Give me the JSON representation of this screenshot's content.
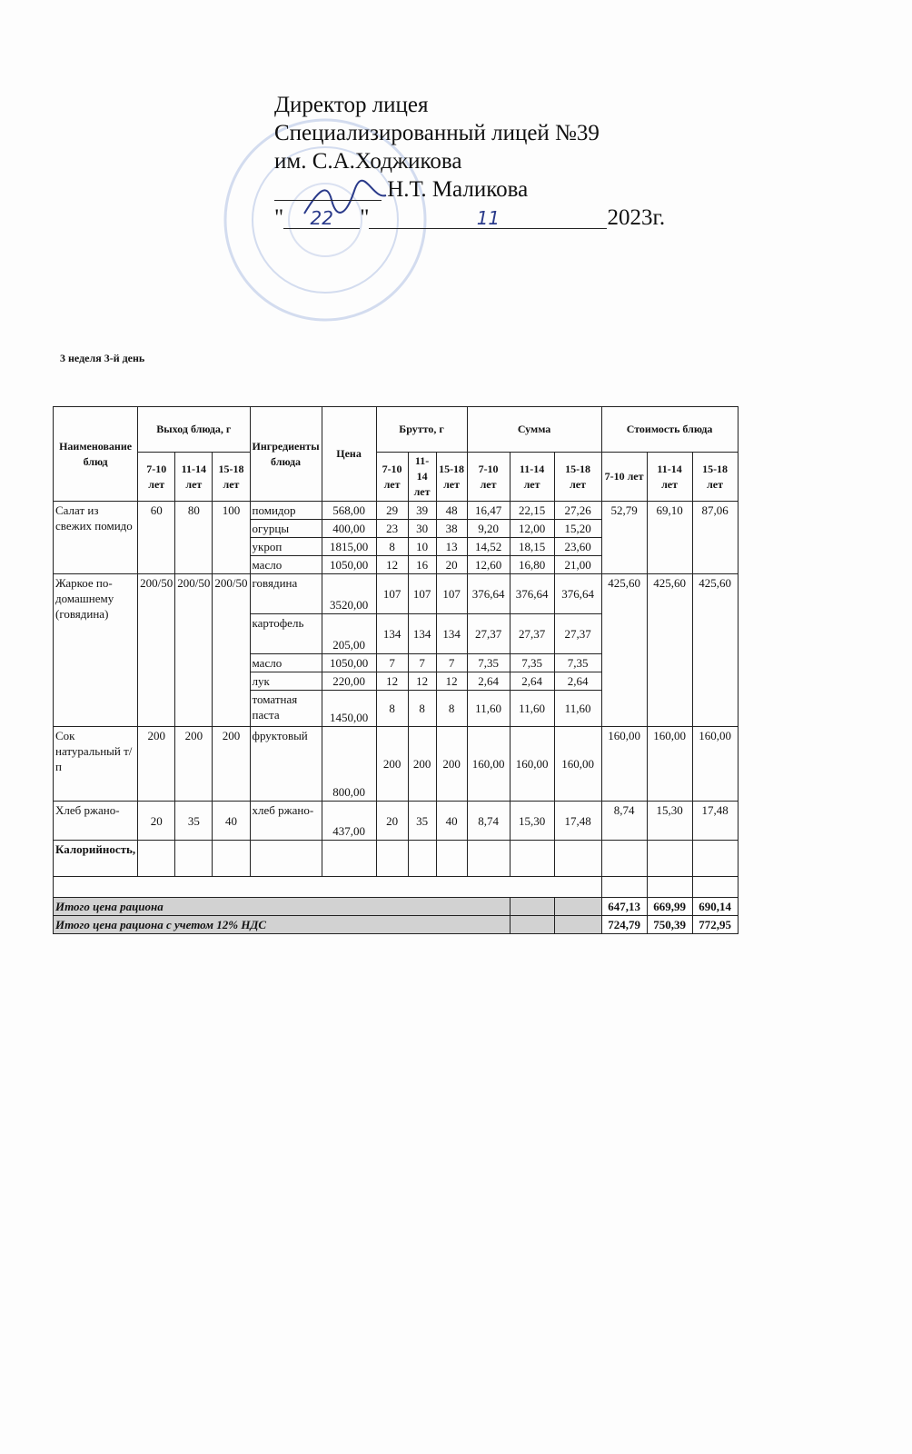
{
  "header": {
    "line1": "Директор лицея",
    "line2": "Специализированный лицей №39",
    "line3": "им. С.А.Ходжикова",
    "signer": "Н.Т. Маликова",
    "day_handwritten": "22",
    "month_handwritten": "11",
    "year": "2023г."
  },
  "subtitle": "3 неделя 3-й день",
  "table": {
    "headers": {
      "dish": "Наименование блюд",
      "output": "Выход блюда, г",
      "ingredients": "Ингредиенты блюда",
      "price": "Цена",
      "brutto": "Брутто, г",
      "sum": "Сумма",
      "cost": "Стоимость блюда",
      "age_groups": [
        "7-10 лет",
        "11-14 лет",
        "15-18 лет"
      ]
    },
    "dishes": [
      {
        "name": "Салат из свежих помидо",
        "output": [
          "60",
          "80",
          "100"
        ],
        "cost": [
          "52,79",
          "69,10",
          "87,06"
        ],
        "ingredients": [
          {
            "name": "помидор",
            "price": "568,00",
            "brutto": [
              "29",
              "39",
              "48"
            ],
            "sum": [
              "16,47",
              "22,15",
              "27,26"
            ]
          },
          {
            "name": "огурцы",
            "price": "400,00",
            "brutto": [
              "23",
              "30",
              "38"
            ],
            "sum": [
              "9,20",
              "12,00",
              "15,20"
            ]
          },
          {
            "name": "укроп",
            "price": "1815,00",
            "brutto": [
              "8",
              "10",
              "13"
            ],
            "sum": [
              "14,52",
              "18,15",
              "23,60"
            ]
          },
          {
            "name": "масло",
            "price": "1050,00",
            "brutto": [
              "12",
              "16",
              "20"
            ],
            "sum": [
              "12,60",
              "16,80",
              "21,00"
            ]
          }
        ]
      },
      {
        "name": "Жаркое по-домашнему (говядина)",
        "output": [
          "200/50",
          "200/50",
          "200/50"
        ],
        "cost": [
          "425,60",
          "425,60",
          "425,60"
        ],
        "ingredients": [
          {
            "name": "говядина",
            "price": "3520,00",
            "brutto": [
              "107",
              "107",
              "107"
            ],
            "sum": [
              "376,64",
              "376,64",
              "376,64"
            ]
          },
          {
            "name": "картофель",
            "price": "205,00",
            "brutto": [
              "134",
              "134",
              "134"
            ],
            "sum": [
              "27,37",
              "27,37",
              "27,37"
            ]
          },
          {
            "name": "масло",
            "price": "1050,00",
            "brutto": [
              "7",
              "7",
              "7"
            ],
            "sum": [
              "7,35",
              "7,35",
              "7,35"
            ]
          },
          {
            "name": "лук",
            "price": "220,00",
            "brutto": [
              "12",
              "12",
              "12"
            ],
            "sum": [
              "2,64",
              "2,64",
              "2,64"
            ]
          },
          {
            "name": "томатная паста",
            "price": "1450,00",
            "brutto": [
              "8",
              "8",
              "8"
            ],
            "sum": [
              "11,60",
              "11,60",
              "11,60"
            ]
          }
        ]
      },
      {
        "name": "Сок натуральный т/п",
        "output": [
          "200",
          "200",
          "200"
        ],
        "cost": [
          "160,00",
          "160,00",
          "160,00"
        ],
        "ingredients": [
          {
            "name": "фруктовый",
            "price": "800,00",
            "brutto": [
              "200",
              "200",
              "200"
            ],
            "sum": [
              "160,00",
              "160,00",
              "160,00"
            ]
          }
        ]
      },
      {
        "name": "Хлеб ржано-",
        "output": [
          "20",
          "35",
          "40"
        ],
        "cost": [
          "8,74",
          "15,30",
          "17,48"
        ],
        "ingredients": [
          {
            "name": "хлеб ржано-",
            "price": "437,00",
            "brutto": [
              "20",
              "35",
              "40"
            ],
            "sum": [
              "8,74",
              "15,30",
              "17,48"
            ]
          }
        ]
      }
    ],
    "calories_label": "Калорийность,",
    "totals": [
      {
        "label": "Итого цена рациона",
        "values": [
          "647,13",
          "669,99",
          "690,14"
        ]
      },
      {
        "label": "Итого цена рациона с учетом 12% НДС",
        "values": [
          "724,79",
          "750,39",
          "772,95"
        ]
      }
    ]
  },
  "colors": {
    "stamp": "#9aaed8",
    "ink": "#2a3a8a"
  }
}
